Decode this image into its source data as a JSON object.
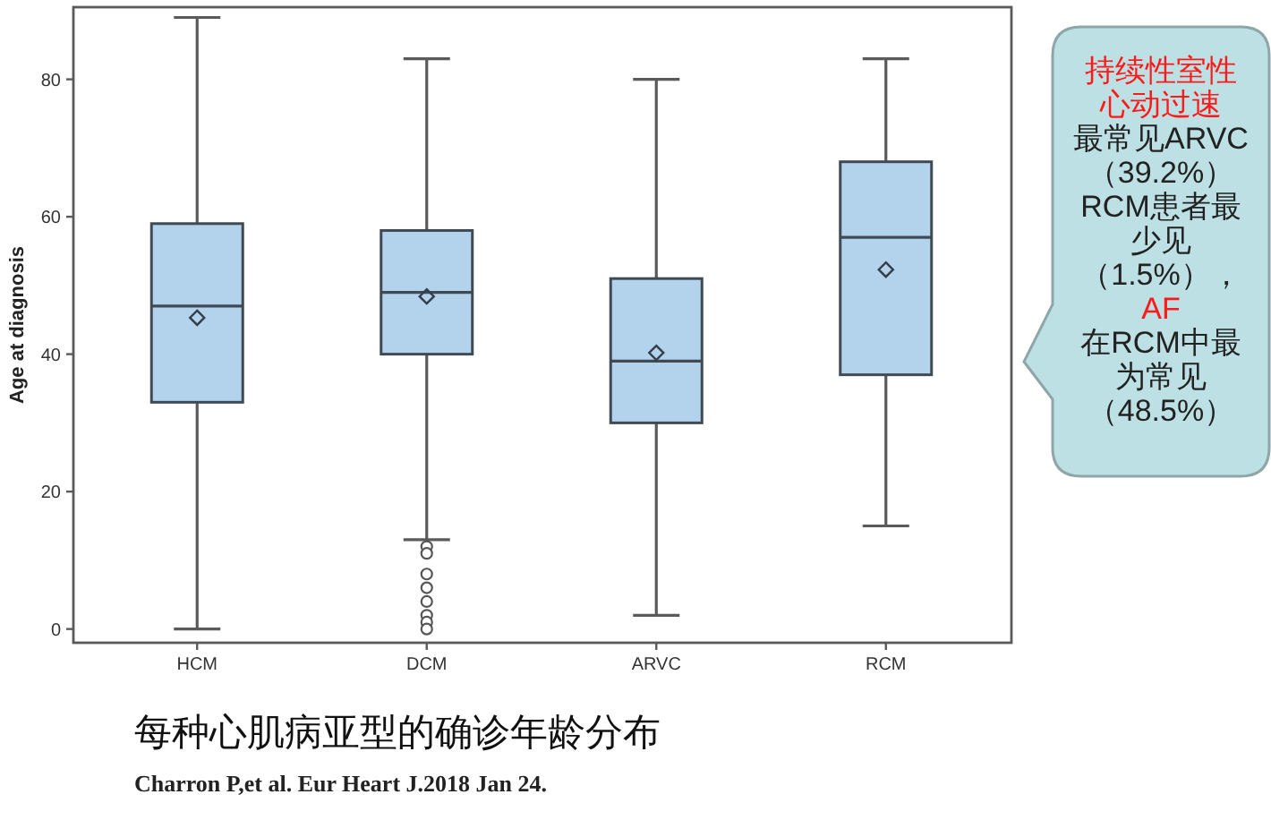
{
  "chart_data": {
    "type": "box",
    "title": "每种心肌病亚型的确诊年龄分布",
    "ylabel": "Age at diagnosis",
    "categories": [
      "HCM",
      "DCM",
      "ARVC",
      "RCM"
    ],
    "series": [
      {
        "color": "#b3d3ec",
        "boxes": [
          {
            "low": 0,
            "q1": 33,
            "median": 47,
            "q3": 59,
            "high": 89,
            "mean": 45.3
          },
          {
            "low": 13,
            "q1": 40,
            "median": 49,
            "q3": 58,
            "high": 83,
            "mean": 48.4,
            "outliers": [
              12,
              11,
              8,
              6,
              4,
              2,
              1,
              0
            ]
          },
          {
            "low": 2,
            "q1": 30,
            "median": 39,
            "q3": 51,
            "high": 80,
            "mean": 40.2
          },
          {
            "low": 15,
            "q1": 37,
            "median": 57,
            "q3": 68,
            "high": 83,
            "mean": 52.3
          }
        ]
      }
    ],
    "marker": "diamond",
    "ylim": [
      -2,
      90.5
    ],
    "yticks": [
      0,
      20,
      40,
      60,
      80
    ],
    "annotations": [
      "持续性室性心动过速",
      "最常见ARVC（39.2%）RCM患者最少见（1.5%），",
      "AF",
      "在RCM中最为常见（48.5%）",
      "Charron P,et al. Eur Heart J.2018 Jan 24."
    ]
  }
}
